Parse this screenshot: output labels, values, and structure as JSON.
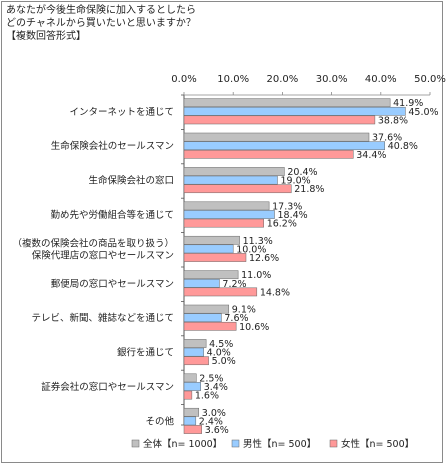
{
  "question": {
    "line1": "あなたが今後生命保険に加入するとしたら",
    "line2": "どのチャネルから買いたいと思いますか？",
    "line3": "【複数回答形式】"
  },
  "colors": {
    "all": "#c0c0c0",
    "male": "#99ccff",
    "female": "#ff9999"
  },
  "chart_data": {
    "type": "bar",
    "orientation": "horizontal",
    "xlim": [
      0,
      50
    ],
    "x_ticks": [
      "0.0%",
      "10.0%",
      "20.0%",
      "30.0%",
      "40.0%",
      "50.0%"
    ],
    "categories": [
      [
        "インターネットを通じて"
      ],
      [
        "生命保険会社のセールスマン"
      ],
      [
        "生命保険会社の窓口"
      ],
      [
        "勤め先や労働組合等を通じて"
      ],
      [
        "（複数の保険会社の商品を取り扱う）",
        "保険代理店の窓口やセールスマン"
      ],
      [
        "郵便局の窓口やセールスマン"
      ],
      [
        "テレビ、新聞、雑誌などを通じて"
      ],
      [
        "銀行を通じて"
      ],
      [
        "証券会社の窓口やセールスマン"
      ],
      [
        "その他"
      ]
    ],
    "series": [
      {
        "name": "全体【n= 1000】",
        "values": [
          41.9,
          37.6,
          20.4,
          17.3,
          11.3,
          11.0,
          9.1,
          4.5,
          2.5,
          3.0
        ]
      },
      {
        "name": "男性【n= 500】",
        "values": [
          45.0,
          40.8,
          19.0,
          18.4,
          10.0,
          7.2,
          7.6,
          4.0,
          3.4,
          2.4
        ]
      },
      {
        "name": "女性【n= 500】",
        "values": [
          38.8,
          34.4,
          21.8,
          16.2,
          12.6,
          14.8,
          10.6,
          5.0,
          1.6,
          3.6
        ]
      }
    ],
    "legend_position": "bottom",
    "grid": false
  }
}
